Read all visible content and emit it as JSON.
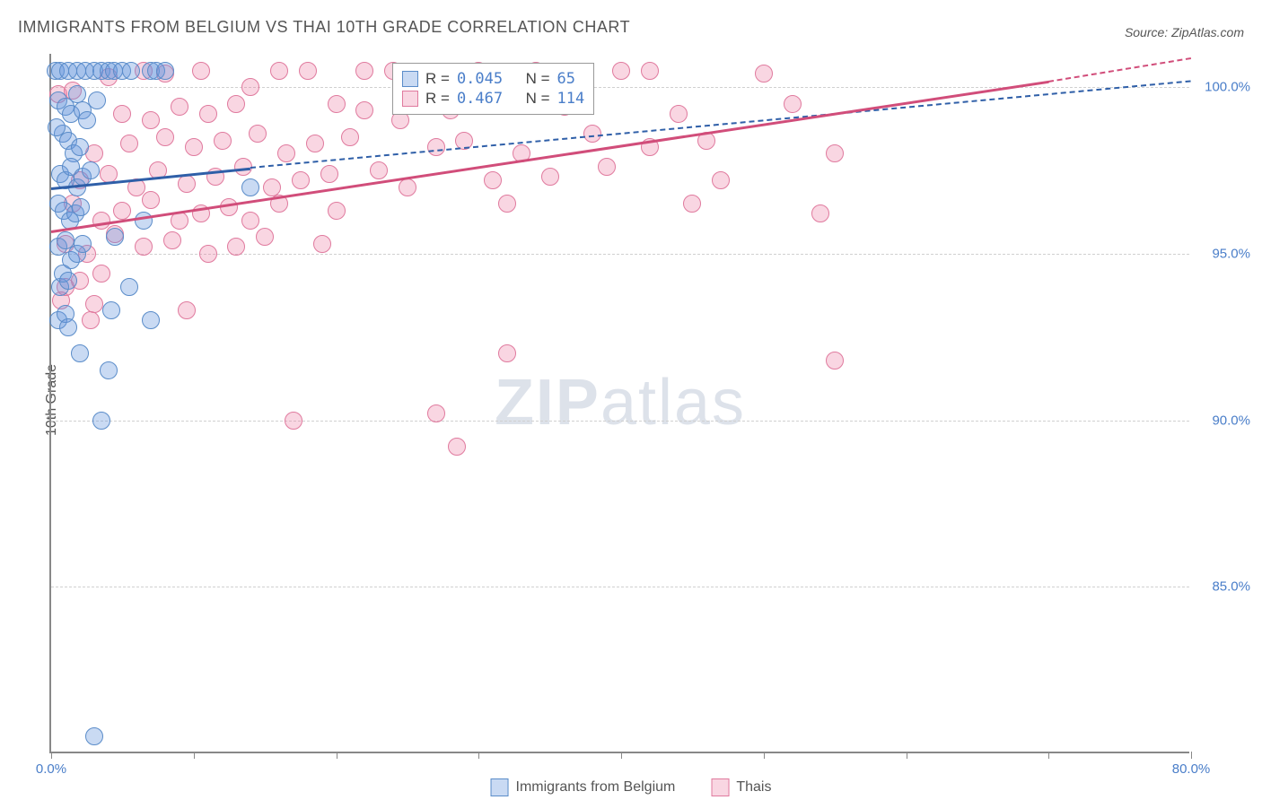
{
  "title": "IMMIGRANTS FROM BELGIUM VS THAI 10TH GRADE CORRELATION CHART",
  "source": "Source: ZipAtlas.com",
  "ylabel": "10th Grade",
  "watermark_bold": "ZIP",
  "watermark_light": "atlas",
  "plot": {
    "background_color": "#ffffff",
    "grid_color": "#d0d0d0",
    "axis_color": "#888888",
    "xlim": [
      0,
      80
    ],
    "ylim": [
      80,
      101
    ],
    "xticks": [
      0,
      10,
      20,
      30,
      40,
      50,
      60,
      70,
      80
    ],
    "xtick_labels": {
      "0": "0.0%",
      "80": "80.0%"
    },
    "yticks": [
      85,
      90,
      95,
      100
    ],
    "ytick_labels": {
      "85": "85.0%",
      "90": "90.0%",
      "95": "95.0%",
      "100": "100.0%"
    }
  },
  "series": [
    {
      "name": "Immigrants from Belgium",
      "fill_color": "rgba(100, 150, 220, 0.35)",
      "stroke_color": "#5a8cc9",
      "marker_radius": 10,
      "R": "0.045",
      "N": " 65",
      "trend": {
        "x0": 0,
        "y0": 97.0,
        "x1": 14,
        "y1": 97.6,
        "dash_x1": 80,
        "dash_y1": 100.2,
        "color": "#2f5fa8"
      },
      "points": [
        [
          0.3,
          100.5
        ],
        [
          0.6,
          100.5
        ],
        [
          1.2,
          100.5
        ],
        [
          1.8,
          100.5
        ],
        [
          2.4,
          100.5
        ],
        [
          3.0,
          100.5
        ],
        [
          3.5,
          100.5
        ],
        [
          4.0,
          100.5
        ],
        [
          4.4,
          100.5
        ],
        [
          5.0,
          100.5
        ],
        [
          5.6,
          100.5
        ],
        [
          7.0,
          100.5
        ],
        [
          7.4,
          100.5
        ],
        [
          8.0,
          100.5
        ],
        [
          0.5,
          99.6
        ],
        [
          1.0,
          99.4
        ],
        [
          1.4,
          99.2
        ],
        [
          1.8,
          99.8
        ],
        [
          2.2,
          99.3
        ],
        [
          2.5,
          99.0
        ],
        [
          0.8,
          98.6
        ],
        [
          1.2,
          98.4
        ],
        [
          1.6,
          98.0
        ],
        [
          2.0,
          98.2
        ],
        [
          0.4,
          98.8
        ],
        [
          3.2,
          99.6
        ],
        [
          0.6,
          97.4
        ],
        [
          1.0,
          97.2
        ],
        [
          1.4,
          97.6
        ],
        [
          1.8,
          97.0
        ],
        [
          2.2,
          97.3
        ],
        [
          2.8,
          97.5
        ],
        [
          14.0,
          97.0
        ],
        [
          0.5,
          96.5
        ],
        [
          0.9,
          96.3
        ],
        [
          1.3,
          96.0
        ],
        [
          1.7,
          96.2
        ],
        [
          2.1,
          96.4
        ],
        [
          6.5,
          96.0
        ],
        [
          0.5,
          95.2
        ],
        [
          1.0,
          95.4
        ],
        [
          1.4,
          94.8
        ],
        [
          1.8,
          95.0
        ],
        [
          2.2,
          95.3
        ],
        [
          4.5,
          95.5
        ],
        [
          0.6,
          94.0
        ],
        [
          0.8,
          94.4
        ],
        [
          1.2,
          94.2
        ],
        [
          5.5,
          94.0
        ],
        [
          0.5,
          93.0
        ],
        [
          1.0,
          93.2
        ],
        [
          1.2,
          92.8
        ],
        [
          4.2,
          93.3
        ],
        [
          7.0,
          93.0
        ],
        [
          2.0,
          92.0
        ],
        [
          4.0,
          91.5
        ],
        [
          3.5,
          90.0
        ],
        [
          3.0,
          80.5
        ]
      ]
    },
    {
      "name": "Thais",
      "fill_color": "rgba(235, 120, 160, 0.30)",
      "stroke_color": "#e07a9e",
      "marker_radius": 10,
      "R": "0.467",
      "N": "114",
      "trend": {
        "x0": 0,
        "y0": 95.7,
        "x1": 70,
        "y1": 100.2,
        "dash_x1": 80,
        "dash_y1": 100.9,
        "color": "#d14d7a"
      },
      "points": [
        [
          0.5,
          99.8
        ],
        [
          1.5,
          99.9
        ],
        [
          4.0,
          100.3
        ],
        [
          6.5,
          100.5
        ],
        [
          8.0,
          100.4
        ],
        [
          10.5,
          100.5
        ],
        [
          14.0,
          100.0
        ],
        [
          16.0,
          100.5
        ],
        [
          18.0,
          100.5
        ],
        [
          22.0,
          100.5
        ],
        [
          24.0,
          100.5
        ],
        [
          30.0,
          100.5
        ],
        [
          34.0,
          100.5
        ],
        [
          40.0,
          100.5
        ],
        [
          42.0,
          100.5
        ],
        [
          50.0,
          100.4
        ],
        [
          5.0,
          99.2
        ],
        [
          7.0,
          99.0
        ],
        [
          9.0,
          99.4
        ],
        [
          11.0,
          99.2
        ],
        [
          13.0,
          99.5
        ],
        [
          20.0,
          99.5
        ],
        [
          22.0,
          99.3
        ],
        [
          24.5,
          99.0
        ],
        [
          26.0,
          99.6
        ],
        [
          28.0,
          99.3
        ],
        [
          32.0,
          99.6
        ],
        [
          36.0,
          99.4
        ],
        [
          44.0,
          99.2
        ],
        [
          52.0,
          99.5
        ],
        [
          3.0,
          98.0
        ],
        [
          5.5,
          98.3
        ],
        [
          8.0,
          98.5
        ],
        [
          10.0,
          98.2
        ],
        [
          12.0,
          98.4
        ],
        [
          14.5,
          98.6
        ],
        [
          16.5,
          98.0
        ],
        [
          18.5,
          98.3
        ],
        [
          21.0,
          98.5
        ],
        [
          27.0,
          98.2
        ],
        [
          29.0,
          98.4
        ],
        [
          33.0,
          98.0
        ],
        [
          38.0,
          98.6
        ],
        [
          42.0,
          98.2
        ],
        [
          46.0,
          98.4
        ],
        [
          55.0,
          98.0
        ],
        [
          2.0,
          97.2
        ],
        [
          4.0,
          97.4
        ],
        [
          6.0,
          97.0
        ],
        [
          7.5,
          97.5
        ],
        [
          9.5,
          97.1
        ],
        [
          11.5,
          97.3
        ],
        [
          13.5,
          97.6
        ],
        [
          15.5,
          97.0
        ],
        [
          17.5,
          97.2
        ],
        [
          19.5,
          97.4
        ],
        [
          23.0,
          97.5
        ],
        [
          25.0,
          97.0
        ],
        [
          31.0,
          97.2
        ],
        [
          35.0,
          97.3
        ],
        [
          39.0,
          97.6
        ],
        [
          47.0,
          97.2
        ],
        [
          54.0,
          96.2
        ],
        [
          1.5,
          96.5
        ],
        [
          3.5,
          96.0
        ],
        [
          5.0,
          96.3
        ],
        [
          7.0,
          96.6
        ],
        [
          9.0,
          96.0
        ],
        [
          10.5,
          96.2
        ],
        [
          12.5,
          96.4
        ],
        [
          14.0,
          96.0
        ],
        [
          16.0,
          96.5
        ],
        [
          20.0,
          96.3
        ],
        [
          32.0,
          96.5
        ],
        [
          45.0,
          96.5
        ],
        [
          1.0,
          95.3
        ],
        [
          2.5,
          95.0
        ],
        [
          4.5,
          95.6
        ],
        [
          6.5,
          95.2
        ],
        [
          8.5,
          95.4
        ],
        [
          11.0,
          95.0
        ],
        [
          13.0,
          95.2
        ],
        [
          15.0,
          95.5
        ],
        [
          19.0,
          95.3
        ],
        [
          1.0,
          94.0
        ],
        [
          2.0,
          94.2
        ],
        [
          3.0,
          93.5
        ],
        [
          3.5,
          94.4
        ],
        [
          0.7,
          93.6
        ],
        [
          2.8,
          93.0
        ],
        [
          9.5,
          93.3
        ],
        [
          32.0,
          92.0
        ],
        [
          55.0,
          91.8
        ],
        [
          27.0,
          90.2
        ],
        [
          17.0,
          90.0
        ],
        [
          28.5,
          89.2
        ]
      ]
    }
  ],
  "legend": {
    "series1_label": "Immigrants from Belgium",
    "series2_label": "Thais"
  },
  "stats_box": {
    "R_label": "R =",
    "N_label": "N ="
  }
}
